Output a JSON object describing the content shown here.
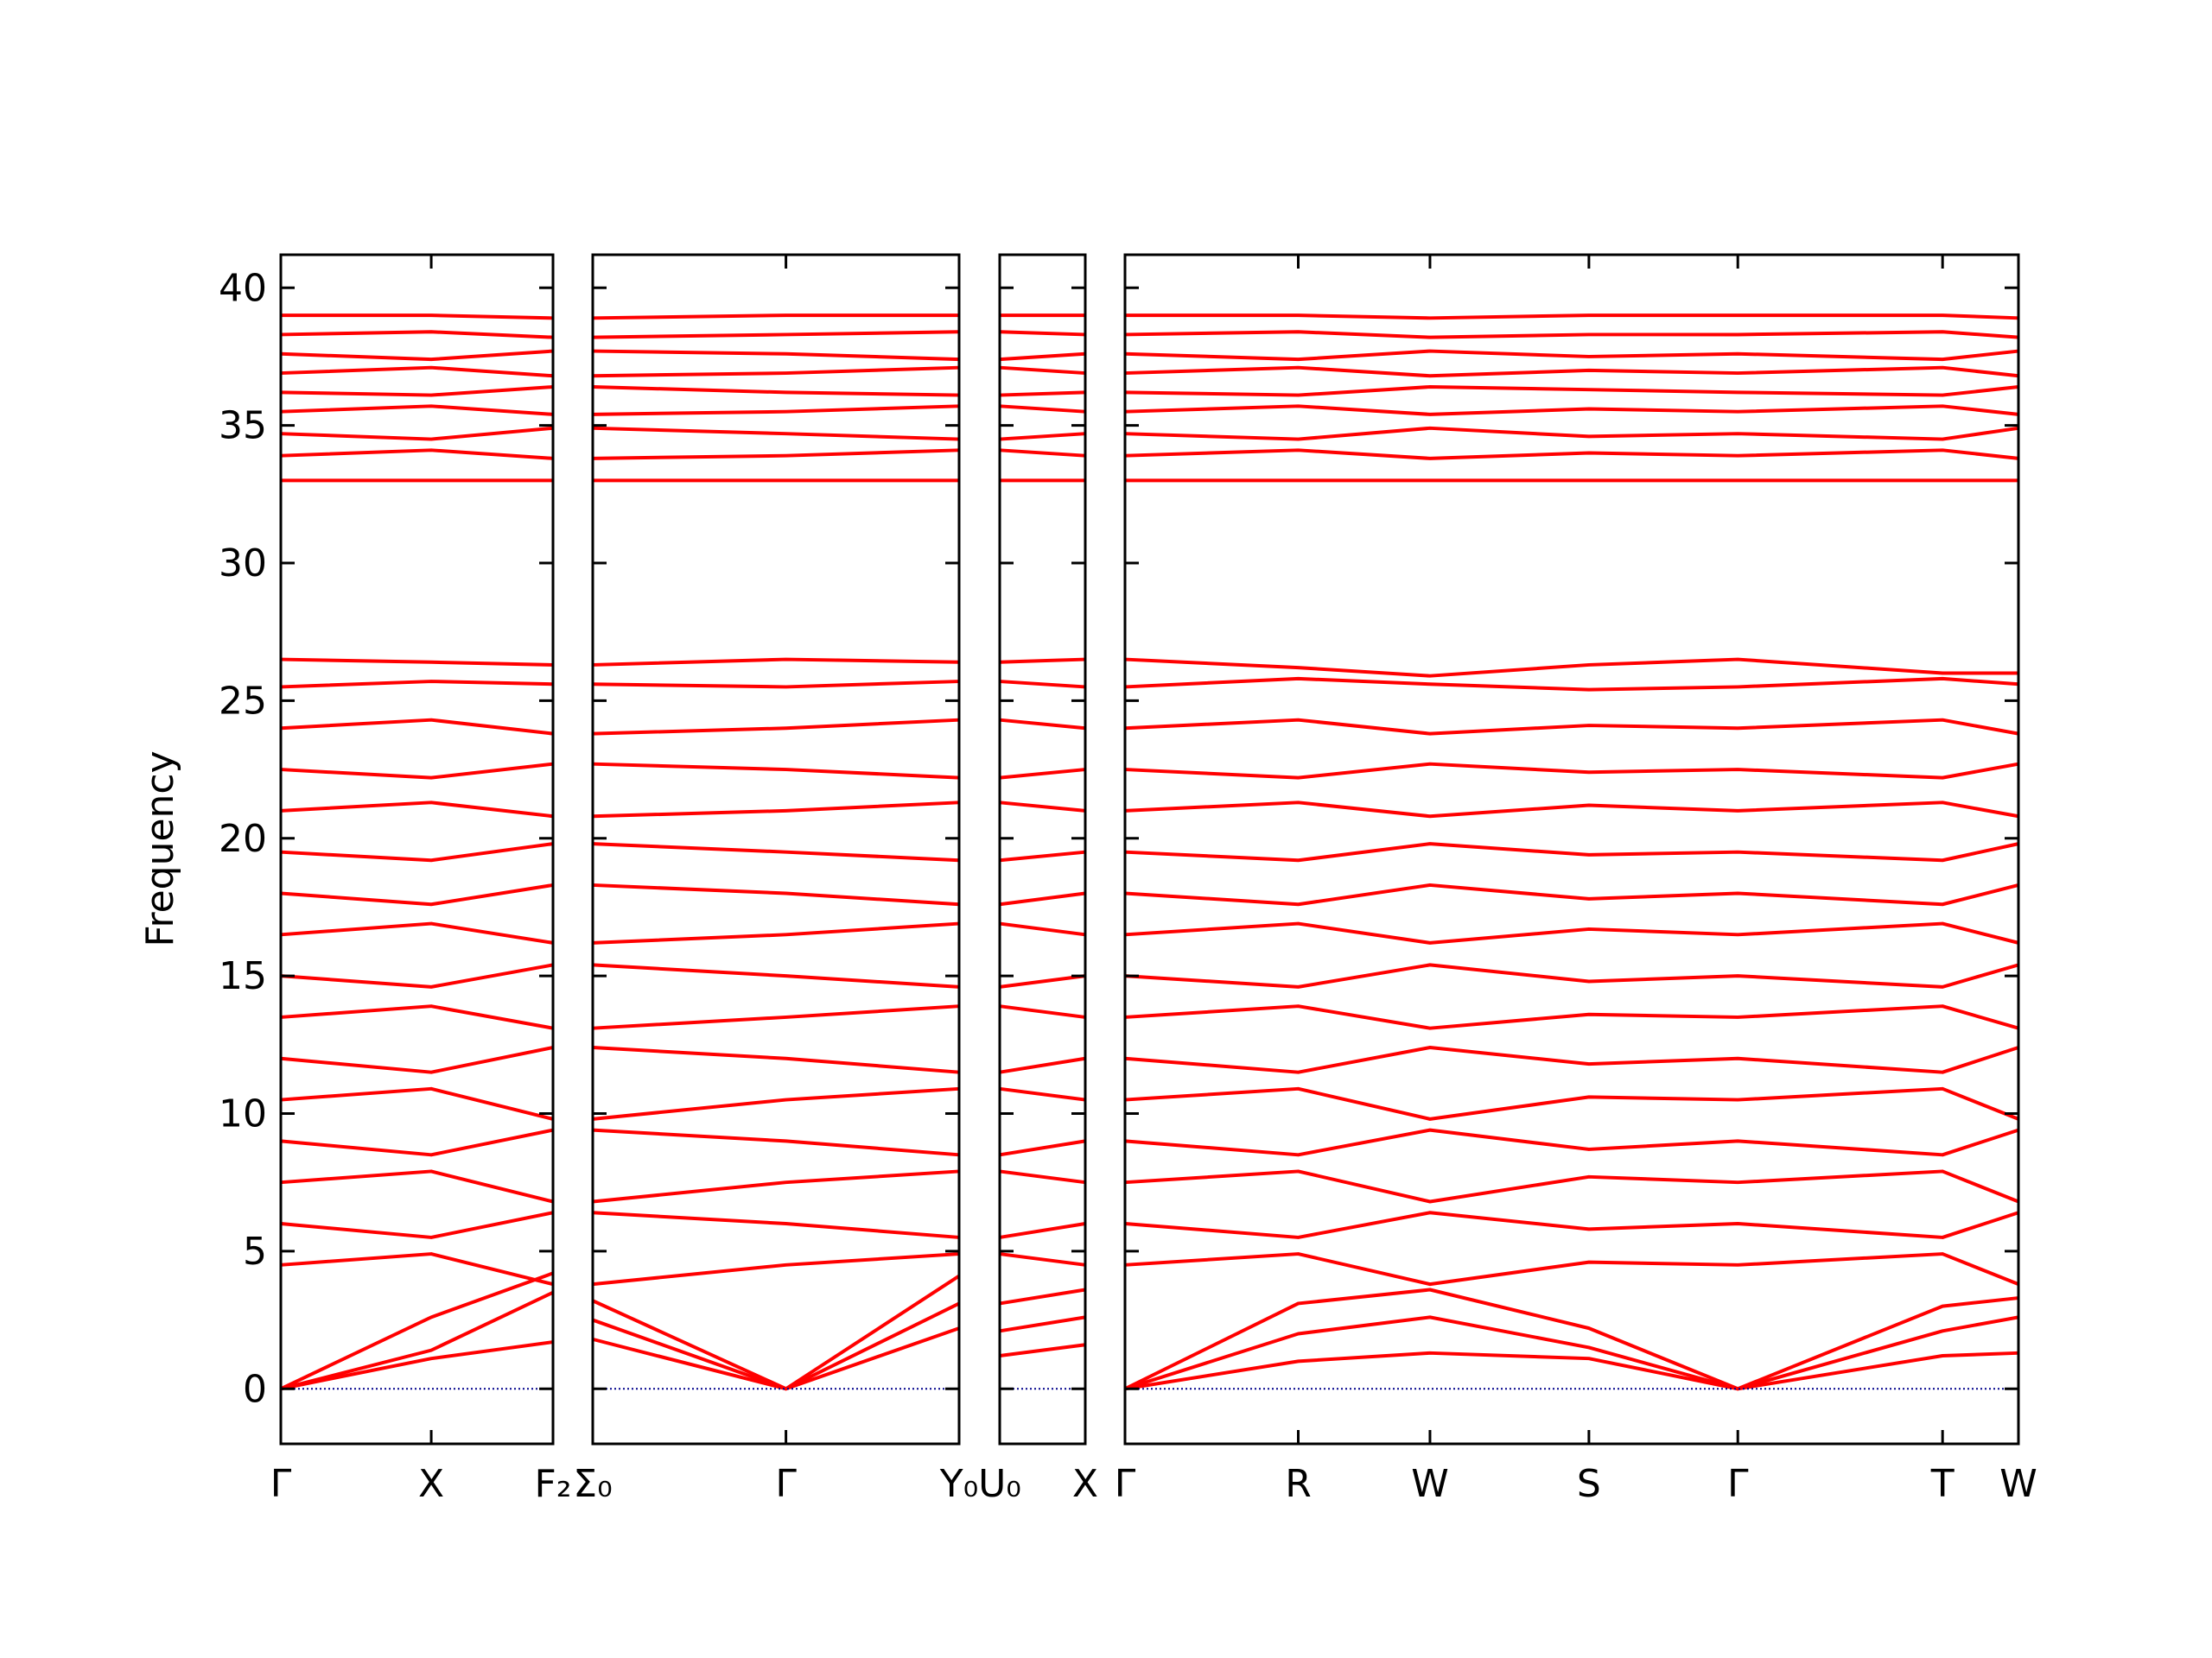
{
  "chart_data": {
    "type": "line",
    "ylabel": "Frequency",
    "ylim": [
      -2,
      41.2
    ],
    "yticks": [
      0,
      5,
      10,
      15,
      20,
      25,
      30,
      35,
      40
    ],
    "line_color": "#ff0000",
    "hline": 0,
    "hline_color": "#00008b",
    "panels": [
      {
        "xlim": [
          0,
          1.9
        ],
        "xticks": [
          {
            "value": 0,
            "label": "Γ"
          },
          {
            "value": 1.05,
            "label": "X"
          },
          {
            "value": 1.9,
            "label": "F₂"
          }
        ],
        "series": [
          {
            "values": [
              33,
              33,
              33
            ]
          },
          {
            "values": [
              33.9,
              34.1,
              33.8
            ]
          },
          {
            "values": [
              34.7,
              34.5,
              34.9
            ]
          },
          {
            "values": [
              35.5,
              35.7,
              35.4
            ]
          },
          {
            "values": [
              36.2,
              36.1,
              36.4
            ]
          },
          {
            "values": [
              36.9,
              37.1,
              36.8
            ]
          },
          {
            "values": [
              37.6,
              37.4,
              37.7
            ]
          },
          {
            "values": [
              38.3,
              38.4,
              38.2
            ]
          },
          {
            "values": [
              39,
              39,
              38.9
            ]
          },
          {
            "values": [
              26.5,
              26.4,
              26.3
            ]
          },
          {
            "values": [
              25.5,
              25.7,
              25.6
            ]
          },
          {
            "values": [
              24,
              24.3,
              23.8
            ]
          },
          {
            "values": [
              22.5,
              22.2,
              22.7
            ]
          },
          {
            "values": [
              21,
              21.3,
              20.8
            ]
          },
          {
            "values": [
              19.5,
              19.2,
              19.8
            ]
          },
          {
            "values": [
              18,
              17.6,
              18.3
            ]
          },
          {
            "values": [
              16.5,
              16.9,
              16.2
            ]
          },
          {
            "values": [
              15,
              14.6,
              15.4
            ]
          },
          {
            "values": [
              13.5,
              13.9,
              13.1
            ]
          },
          {
            "values": [
              12,
              11.5,
              12.4
            ]
          },
          {
            "values": [
              10.5,
              10.9,
              9.8
            ]
          },
          {
            "values": [
              9,
              8.5,
              9.4
            ]
          },
          {
            "values": [
              7.5,
              7.9,
              6.8
            ]
          },
          {
            "values": [
              6,
              5.5,
              6.4
            ]
          },
          {
            "values": [
              4.5,
              4.9,
              3.8
            ]
          },
          {
            "values": [
              0,
              1.1,
              1.7
            ]
          },
          {
            "values": [
              0,
              1.4,
              3.5
            ]
          },
          {
            "values": [
              0,
              2.6,
              4.2
            ]
          }
        ]
      },
      {
        "xlim": [
          0,
          2.56
        ],
        "xticks": [
          {
            "value": 0,
            "label": "Σ₀"
          },
          {
            "value": 1.35,
            "label": "Γ"
          },
          {
            "value": 2.56,
            "label": "Y₀"
          }
        ],
        "series": [
          {
            "values": [
              33,
              33,
              33
            ]
          },
          {
            "values": [
              33.8,
              33.9,
              34.1
            ]
          },
          {
            "values": [
              34.9,
              34.7,
              34.5
            ]
          },
          {
            "values": [
              35.4,
              35.5,
              35.7
            ]
          },
          {
            "values": [
              36.4,
              36.2,
              36.1
            ]
          },
          {
            "values": [
              36.8,
              36.9,
              37.1
            ]
          },
          {
            "values": [
              37.7,
              37.6,
              37.4
            ]
          },
          {
            "values": [
              38.2,
              38.3,
              38.4
            ]
          },
          {
            "values": [
              38.9,
              39,
              39
            ]
          },
          {
            "values": [
              26.3,
              26.5,
              26.4
            ]
          },
          {
            "values": [
              25.6,
              25.5,
              25.7
            ]
          },
          {
            "values": [
              23.8,
              24,
              24.3
            ]
          },
          {
            "values": [
              22.7,
              22.5,
              22.2
            ]
          },
          {
            "values": [
              20.8,
              21,
              21.3
            ]
          },
          {
            "values": [
              19.8,
              19.5,
              19.2
            ]
          },
          {
            "values": [
              18.3,
              18,
              17.6
            ]
          },
          {
            "values": [
              16.2,
              16.5,
              16.9
            ]
          },
          {
            "values": [
              15.4,
              15,
              14.6
            ]
          },
          {
            "values": [
              13.1,
              13.5,
              13.9
            ]
          },
          {
            "values": [
              12.4,
              12,
              11.5
            ]
          },
          {
            "values": [
              9.8,
              10.5,
              10.9
            ]
          },
          {
            "values": [
              9.4,
              9,
              8.5
            ]
          },
          {
            "values": [
              6.8,
              7.5,
              7.9
            ]
          },
          {
            "values": [
              6.4,
              6,
              5.5
            ]
          },
          {
            "values": [
              3.8,
              4.5,
              4.9
            ]
          },
          {
            "values": [
              2.5,
              0,
              2.2
            ]
          },
          {
            "values": [
              1.8,
              0,
              3.1
            ]
          },
          {
            "values": [
              3.2,
              0,
              4.1
            ]
          }
        ]
      },
      {
        "xlim": [
          0,
          0.6
        ],
        "xticks": [
          {
            "value": 0,
            "label": "U₀"
          },
          {
            "value": 0.6,
            "label": "X"
          }
        ],
        "series": [
          {
            "values": [
              33,
              33
            ]
          },
          {
            "values": [
              34.1,
              33.9
            ]
          },
          {
            "values": [
              34.5,
              34.7
            ]
          },
          {
            "values": [
              35.7,
              35.5
            ]
          },
          {
            "values": [
              36.1,
              36.2
            ]
          },
          {
            "values": [
              37.1,
              36.9
            ]
          },
          {
            "values": [
              37.4,
              37.6
            ]
          },
          {
            "values": [
              38.4,
              38.3
            ]
          },
          {
            "values": [
              39,
              39
            ]
          },
          {
            "values": [
              26.4,
              26.5
            ]
          },
          {
            "values": [
              25.7,
              25.5
            ]
          },
          {
            "values": [
              24.3,
              24
            ]
          },
          {
            "values": [
              22.2,
              22.5
            ]
          },
          {
            "values": [
              21.3,
              21
            ]
          },
          {
            "values": [
              19.2,
              19.5
            ]
          },
          {
            "values": [
              17.6,
              18
            ]
          },
          {
            "values": [
              16.9,
              16.5
            ]
          },
          {
            "values": [
              14.6,
              15
            ]
          },
          {
            "values": [
              13.9,
              13.5
            ]
          },
          {
            "values": [
              11.5,
              12
            ]
          },
          {
            "values": [
              10.9,
              10.5
            ]
          },
          {
            "values": [
              8.5,
              9
            ]
          },
          {
            "values": [
              7.9,
              7.5
            ]
          },
          {
            "values": [
              5.5,
              6
            ]
          },
          {
            "values": [
              4.9,
              4.5
            ]
          },
          {
            "values": [
              1.2,
              1.6
            ]
          },
          {
            "values": [
              2.1,
              2.6
            ]
          },
          {
            "values": [
              3.1,
              3.6
            ]
          }
        ]
      },
      {
        "xlim": [
          0,
          6.24
        ],
        "xticks": [
          {
            "value": 0,
            "label": "Γ"
          },
          {
            "value": 1.21,
            "label": "R"
          },
          {
            "value": 2.13,
            "label": "W"
          },
          {
            "value": 3.24,
            "label": "S"
          },
          {
            "value": 4.28,
            "label": "Γ"
          },
          {
            "value": 5.71,
            "label": "T"
          },
          {
            "value": 6.24,
            "label": "W"
          }
        ],
        "series": [
          {
            "values": [
              33,
              33,
              33,
              33,
              33,
              33,
              33
            ]
          },
          {
            "values": [
              33.9,
              34.1,
              33.8,
              34,
              33.9,
              34.1,
              33.8
            ]
          },
          {
            "values": [
              34.7,
              34.5,
              34.9,
              34.6,
              34.7,
              34.5,
              34.9
            ]
          },
          {
            "values": [
              35.5,
              35.7,
              35.4,
              35.6,
              35.5,
              35.7,
              35.4
            ]
          },
          {
            "values": [
              36.2,
              36.1,
              36.4,
              36.3,
              36.2,
              36.1,
              36.4
            ]
          },
          {
            "values": [
              36.9,
              37.1,
              36.8,
              37,
              36.9,
              37.1,
              36.8
            ]
          },
          {
            "values": [
              37.6,
              37.4,
              37.7,
              37.5,
              37.6,
              37.4,
              37.7
            ]
          },
          {
            "values": [
              38.3,
              38.4,
              38.2,
              38.3,
              38.3,
              38.4,
              38.2
            ]
          },
          {
            "values": [
              39,
              39,
              38.9,
              39,
              39,
              39,
              38.9
            ]
          },
          {
            "values": [
              26.5,
              26.2,
              25.9,
              26.3,
              26.5,
              26,
              26
            ]
          },
          {
            "values": [
              25.5,
              25.8,
              25.6,
              25.4,
              25.5,
              25.8,
              25.6
            ]
          },
          {
            "values": [
              24,
              24.3,
              23.8,
              24.1,
              24,
              24.3,
              23.8
            ]
          },
          {
            "values": [
              22.5,
              22.2,
              22.7,
              22.4,
              22.5,
              22.2,
              22.7
            ]
          },
          {
            "values": [
              21,
              21.3,
              20.8,
              21.2,
              21,
              21.3,
              20.8
            ]
          },
          {
            "values": [
              19.5,
              19.2,
              19.8,
              19.4,
              19.5,
              19.2,
              19.8
            ]
          },
          {
            "values": [
              18,
              17.6,
              18.3,
              17.8,
              18,
              17.6,
              18.3
            ]
          },
          {
            "values": [
              16.5,
              16.9,
              16.2,
              16.7,
              16.5,
              16.9,
              16.2
            ]
          },
          {
            "values": [
              15,
              14.6,
              15.4,
              14.8,
              15,
              14.6,
              15.4
            ]
          },
          {
            "values": [
              13.5,
              13.9,
              13.1,
              13.6,
              13.5,
              13.9,
              13.1
            ]
          },
          {
            "values": [
              12,
              11.5,
              12.4,
              11.8,
              12,
              11.5,
              12.4
            ]
          },
          {
            "values": [
              10.5,
              10.9,
              9.8,
              10.6,
              10.5,
              10.9,
              9.8
            ]
          },
          {
            "values": [
              9,
              8.5,
              9.4,
              8.7,
              9,
              8.5,
              9.4
            ]
          },
          {
            "values": [
              7.5,
              7.9,
              6.8,
              7.7,
              7.5,
              7.9,
              6.8
            ]
          },
          {
            "values": [
              6,
              5.5,
              6.4,
              5.8,
              6,
              5.5,
              6.4
            ]
          },
          {
            "values": [
              4.5,
              4.9,
              3.8,
              4.6,
              4.5,
              4.9,
              3.8
            ]
          },
          {
            "values": [
              0,
              1,
              1.3,
              1.1,
              0,
              1.2,
              1.3
            ]
          },
          {
            "values": [
              0,
              2,
              2.6,
              1.5,
              0,
              2.1,
              2.6
            ]
          },
          {
            "values": [
              0,
              3.1,
              3.6,
              2.2,
              0,
              3,
              3.3
            ]
          }
        ]
      }
    ]
  }
}
